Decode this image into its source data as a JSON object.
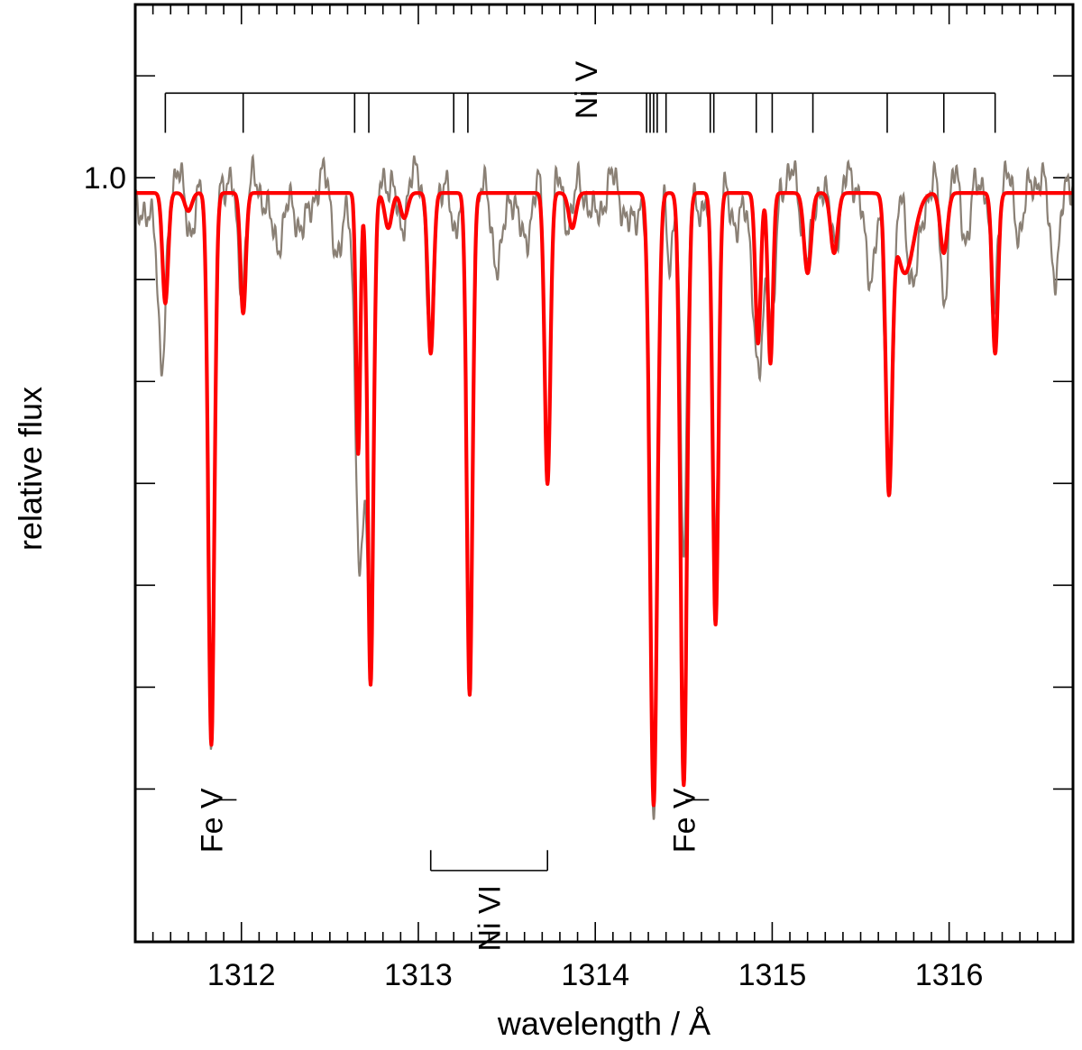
{
  "chart_data": {
    "type": "line",
    "xlabel": "wavelength / Å",
    "ylabel": "relative flux",
    "xlim": [
      1311.4,
      1316.7
    ],
    "ylim": [
      0.25,
      1.17
    ],
    "x_ticks": [
      1312,
      1313,
      1314,
      1315,
      1316
    ],
    "y_ticks_labeled": [
      {
        "value": 1.0,
        "label": "1.0"
      }
    ],
    "y_major_ticks": [
      0.4,
      0.5,
      0.6,
      0.7,
      0.8,
      0.9,
      1.0,
      1.1
    ],
    "grid": false,
    "colors": {
      "observation": "#8a8075",
      "model": "#ff0000"
    },
    "series": [
      {
        "role": "observation",
        "lines": [
          {
            "w": 1311.45,
            "d": 0.05,
            "s": 0.03
          },
          {
            "w": 1311.55,
            "d": 0.2,
            "s": 0.022
          },
          {
            "w": 1311.72,
            "d": 0.05,
            "s": 0.03
          },
          {
            "w": 1311.83,
            "d": 0.56,
            "s": 0.018
          },
          {
            "w": 1312.0,
            "d": 0.1,
            "s": 0.025
          },
          {
            "w": 1312.2,
            "d": 0.06,
            "s": 0.05
          },
          {
            "w": 1312.35,
            "d": 0.05,
            "s": 0.04
          },
          {
            "w": 1312.55,
            "d": 0.08,
            "s": 0.03
          },
          {
            "w": 1312.67,
            "d": 0.4,
            "s": 0.025
          },
          {
            "w": 1312.73,
            "d": 0.45,
            "s": 0.02
          },
          {
            "w": 1312.9,
            "d": 0.05,
            "s": 0.025
          },
          {
            "w": 1313.07,
            "d": 0.18,
            "s": 0.02
          },
          {
            "w": 1313.2,
            "d": 0.06,
            "s": 0.02
          },
          {
            "w": 1313.29,
            "d": 0.53,
            "s": 0.018
          },
          {
            "w": 1313.45,
            "d": 0.08,
            "s": 0.04
          },
          {
            "w": 1313.6,
            "d": 0.07,
            "s": 0.03
          },
          {
            "w": 1313.73,
            "d": 0.26,
            "s": 0.018
          },
          {
            "w": 1313.85,
            "d": 0.04,
            "s": 0.03
          },
          {
            "w": 1314.0,
            "d": 0.04,
            "s": 0.04
          },
          {
            "w": 1314.2,
            "d": 0.05,
            "s": 0.04
          },
          {
            "w": 1314.33,
            "d": 0.63,
            "s": 0.022
          },
          {
            "w": 1314.42,
            "d": 0.1,
            "s": 0.015
          },
          {
            "w": 1314.5,
            "d": 0.38,
            "s": 0.018
          },
          {
            "w": 1314.6,
            "d": 0.05,
            "s": 0.02
          },
          {
            "w": 1314.68,
            "d": 0.36,
            "s": 0.018
          },
          {
            "w": 1314.8,
            "d": 0.06,
            "s": 0.025
          },
          {
            "w": 1314.92,
            "d": 0.2,
            "s": 0.03
          },
          {
            "w": 1315.0,
            "d": 0.15,
            "s": 0.02
          },
          {
            "w": 1315.2,
            "d": 0.08,
            "s": 0.03
          },
          {
            "w": 1315.35,
            "d": 0.06,
            "s": 0.03
          },
          {
            "w": 1315.55,
            "d": 0.1,
            "s": 0.03
          },
          {
            "w": 1315.66,
            "d": 0.28,
            "s": 0.025
          },
          {
            "w": 1315.8,
            "d": 0.1,
            "s": 0.04
          },
          {
            "w": 1315.97,
            "d": 0.12,
            "s": 0.02
          },
          {
            "w": 1316.1,
            "d": 0.06,
            "s": 0.025
          },
          {
            "w": 1316.25,
            "d": 0.14,
            "s": 0.02
          },
          {
            "w": 1316.4,
            "d": 0.05,
            "s": 0.03
          },
          {
            "w": 1316.6,
            "d": 0.09,
            "s": 0.03
          }
        ],
        "continuum": 1.0
      },
      {
        "role": "model",
        "lines": [
          {
            "w": 1311.57,
            "d": 0.11,
            "s": 0.016
          },
          {
            "w": 1311.7,
            "d": 0.018,
            "s": 0.02
          },
          {
            "w": 1311.83,
            "d": 0.55,
            "s": 0.017
          },
          {
            "w": 1312.01,
            "d": 0.12,
            "s": 0.015
          },
          {
            "w": 1312.66,
            "d": 0.26,
            "s": 0.012
          },
          {
            "w": 1312.73,
            "d": 0.49,
            "s": 0.016
          },
          {
            "w": 1312.83,
            "d": 0.035,
            "s": 0.02
          },
          {
            "w": 1312.92,
            "d": 0.025,
            "s": 0.02
          },
          {
            "w": 1313.07,
            "d": 0.16,
            "s": 0.016
          },
          {
            "w": 1313.29,
            "d": 0.5,
            "s": 0.016
          },
          {
            "w": 1313.73,
            "d": 0.29,
            "s": 0.016
          },
          {
            "w": 1313.87,
            "d": 0.035,
            "s": 0.02
          },
          {
            "w": 1314.33,
            "d": 0.61,
            "s": 0.02
          },
          {
            "w": 1314.5,
            "d": 0.59,
            "s": 0.018
          },
          {
            "w": 1314.68,
            "d": 0.43,
            "s": 0.016
          },
          {
            "w": 1314.92,
            "d": 0.15,
            "s": 0.015
          },
          {
            "w": 1314.99,
            "d": 0.17,
            "s": 0.014
          },
          {
            "w": 1315.2,
            "d": 0.08,
            "s": 0.02
          },
          {
            "w": 1315.35,
            "d": 0.06,
            "s": 0.02
          },
          {
            "w": 1315.66,
            "d": 0.29,
            "s": 0.018
          },
          {
            "w": 1315.75,
            "d": 0.08,
            "s": 0.05
          },
          {
            "w": 1315.97,
            "d": 0.06,
            "s": 0.02
          },
          {
            "w": 1316.26,
            "d": 0.16,
            "s": 0.016
          }
        ],
        "continuum": 0.985
      }
    ],
    "annotations": {
      "ni_v": {
        "label": "Ni V",
        "bar_y": 1.083,
        "lines": [
          1311.57,
          1312.01,
          1312.64,
          1312.72,
          1313.2,
          1313.28,
          1314.29,
          1314.31,
          1314.33,
          1314.35,
          1314.4,
          1314.65,
          1314.67,
          1314.91,
          1315.0,
          1315.23,
          1315.65,
          1315.97,
          1316.26
        ]
      },
      "fe_v_1": {
        "label": "Fe V",
        "w": 1311.83
      },
      "fe_v_2": {
        "label": "Fe V",
        "w": 1314.5
      },
      "ni_vi": {
        "label": "Ni VI",
        "lines": [
          1313.07,
          1313.73
        ]
      }
    }
  }
}
